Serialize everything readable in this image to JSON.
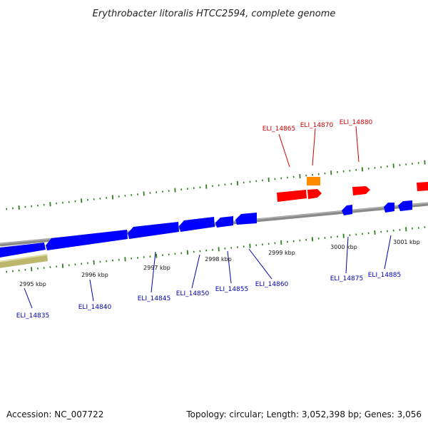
{
  "title": "Erythrobacter litoralis HTCC2594, complete genome",
  "footer": {
    "accession": "Accession: NC_007722",
    "topology": "Topology: circular; Length: 3,052,398 bp; Genes: 3,056"
  },
  "colors": {
    "backbone": "#8a8a8a",
    "tick": "#2e7d1e",
    "forward_gene": "#ff0000",
    "reverse_gene": "#0000ff",
    "rna_gene": "#ff8c00",
    "other_feature": "#bdb76b",
    "forward_label": "#cc0000",
    "reverse_label": "#0000aa"
  },
  "kbp_labels": [
    "2995 kbp",
    "2996 kbp",
    "2997 kbp",
    "2998 kbp",
    "2999 kbp",
    "3000 kbp",
    "3001 kbp"
  ],
  "gene_labels": {
    "forward": [
      "ELI_14865",
      "ELI_14870",
      "ELI_14880"
    ],
    "reverse": [
      "ELI_14835",
      "ELI_14840",
      "ELI_14845",
      "ELI_14850",
      "ELI_14855",
      "ELI_14860",
      "ELI_14875",
      "ELI_14885"
    ]
  }
}
